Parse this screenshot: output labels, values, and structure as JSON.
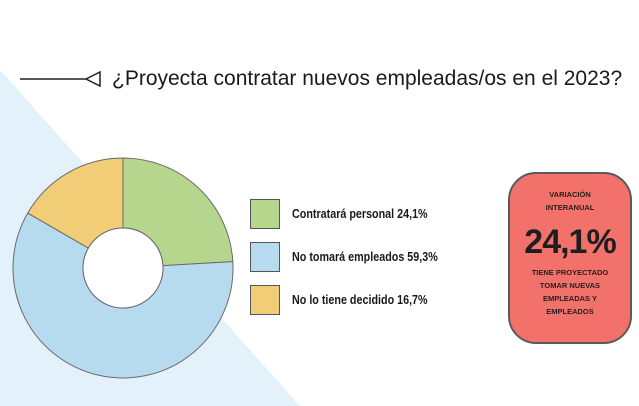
{
  "title": "¿Proyecta contratar nuevos empleadas/os en el 2023?",
  "colors": {
    "green": "#b6d68e",
    "blue": "#b7dbee",
    "yellow": "#f2cd78",
    "badge": "#f2726b",
    "background_wedge": "#e3f2fa"
  },
  "chart_data": {
    "type": "pie",
    "variant": "donut",
    "title": "¿Proyecta contratar nuevos empleadas/os en el 2023?",
    "categories": [
      "Contratará personal",
      "No tomará empleados",
      "No lo tiene decidido"
    ],
    "values": [
      24.1,
      59.3,
      16.7
    ],
    "unit": "%",
    "legend_position": "right"
  },
  "legend": [
    {
      "label": "Contratará personal 24,1%",
      "color_key": "green"
    },
    {
      "label": "No tomará empleados 59,3%",
      "color_key": "blue"
    },
    {
      "label": "No lo tiene decidido 16,7%",
      "color_key": "yellow"
    }
  ],
  "badge": {
    "top_text": "VARIACIÓN INTERANUAL",
    "value": "24,1%",
    "bottom_text": "TIENE PROYECTADO TOMAR NUEVAS EMPLEADAS Y EMPLEADOS"
  }
}
